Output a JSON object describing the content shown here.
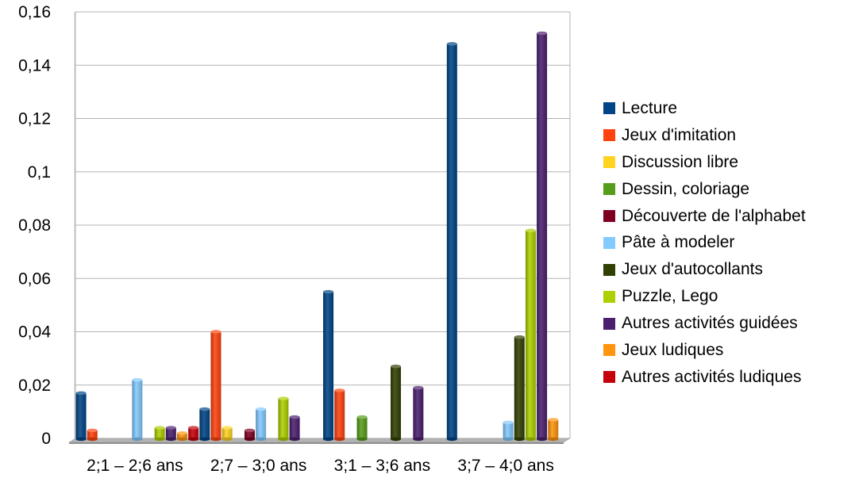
{
  "chart_data": {
    "type": "bar",
    "categories": [
      "2;1 – 2;6 ans",
      "2;7 – 3;0 ans",
      "3;1 – 3;6 ans",
      "3;7 – 4;0 ans"
    ],
    "ylim": [
      0,
      0.16
    ],
    "y_ticks": [
      "0",
      "0,02",
      "0,04",
      "0,06",
      "0,08",
      "0,1",
      "0,12",
      "0,14",
      "0,16"
    ],
    "grid": true,
    "legend_position": "right",
    "series": [
      {
        "name": "Lecture",
        "color": "#004586",
        "values": [
          0.017,
          0.011,
          0.055,
          0.148
        ]
      },
      {
        "name": "Jeux d'imitation",
        "color": "#ff420e",
        "values": [
          0.003,
          0.04,
          0.018,
          0
        ]
      },
      {
        "name": "Discussion libre",
        "color": "#ffd320",
        "values": [
          0,
          0.004,
          0,
          0
        ]
      },
      {
        "name": "Dessin, coloriage",
        "color": "#579d1c",
        "values": [
          0,
          0,
          0.008,
          0
        ]
      },
      {
        "name": "Découverte de l'alphabet",
        "color": "#7e0021",
        "values": [
          0,
          0.003,
          0,
          0
        ]
      },
      {
        "name": "Pâte à modeler",
        "color": "#83caff",
        "values": [
          0.022,
          0.011,
          0,
          0.006
        ]
      },
      {
        "name": "Jeux d'autocollants",
        "color": "#314004",
        "values": [
          0,
          0,
          0.027,
          0.038
        ]
      },
      {
        "name": "Puzzle, Lego",
        "color": "#aecf00",
        "values": [
          0.004,
          0.015,
          0,
          0.078
        ]
      },
      {
        "name": "Autres activités guidées",
        "color": "#4b1f6f",
        "values": [
          0.004,
          0.008,
          0.019,
          0.152
        ]
      },
      {
        "name": "Jeux ludiques",
        "color": "#ff950e",
        "values": [
          0.002,
          0,
          0,
          0.007
        ]
      },
      {
        "name": "Autres activités ludiques",
        "color": "#c5000b",
        "values": [
          0.004,
          0,
          0,
          0
        ]
      }
    ]
  }
}
